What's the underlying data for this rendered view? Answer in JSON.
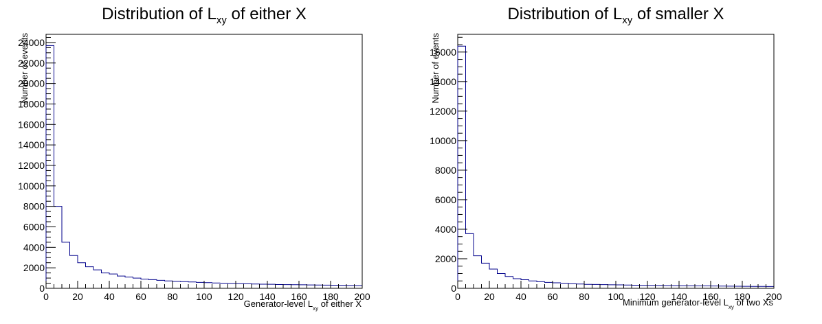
{
  "chart_data": [
    {
      "type": "bar",
      "title_main": "Distribution of L",
      "title_sub": "xy",
      "title_rest": " of either X",
      "xlabel_main": "Generator-level L",
      "xlabel_sub": "xy",
      "xlabel_rest": " of either X",
      "ylabel": "Number of events",
      "xlim": [
        0,
        200
      ],
      "ylim": [
        0,
        24800
      ],
      "xticks": [
        0,
        20,
        40,
        60,
        80,
        100,
        120,
        140,
        160,
        180,
        200
      ],
      "yticks": [
        0,
        2000,
        4000,
        6000,
        8000,
        10000,
        12000,
        14000,
        16000,
        18000,
        20000,
        22000,
        24000
      ],
      "bin_width": 5,
      "values": [
        23700,
        8000,
        4500,
        3200,
        2500,
        2100,
        1800,
        1500,
        1400,
        1200,
        1100,
        1000,
        900,
        850,
        780,
        720,
        680,
        650,
        620,
        580,
        550,
        520,
        500,
        480,
        460,
        440,
        420,
        400,
        390,
        370,
        360,
        350,
        340,
        330,
        320,
        310,
        300,
        290,
        280,
        270
      ],
      "line_color": "#00008b",
      "grid": false
    },
    {
      "type": "bar",
      "title_main": "Distribution of L",
      "title_sub": "xy",
      "title_rest": " of smaller X",
      "xlabel_main": "Minimum generator-level L",
      "xlabel_sub": "xy",
      "xlabel_rest": " of two Xs",
      "ylabel": "Number of events",
      "xlim": [
        0,
        200
      ],
      "ylim": [
        0,
        17200
      ],
      "xticks": [
        0,
        20,
        40,
        60,
        80,
        100,
        120,
        140,
        160,
        180,
        200
      ],
      "yticks": [
        0,
        2000,
        4000,
        6000,
        8000,
        10000,
        12000,
        14000,
        16000
      ],
      "bin_width": 5,
      "values": [
        16400,
        3700,
        2200,
        1700,
        1300,
        1000,
        800,
        650,
        580,
        500,
        450,
        400,
        370,
        340,
        310,
        290,
        270,
        260,
        250,
        240,
        230,
        220,
        210,
        200,
        195,
        190,
        185,
        180,
        175,
        170,
        165,
        160,
        155,
        150,
        145,
        140,
        135,
        130,
        125,
        120
      ],
      "line_color": "#00008b",
      "grid": false
    }
  ]
}
